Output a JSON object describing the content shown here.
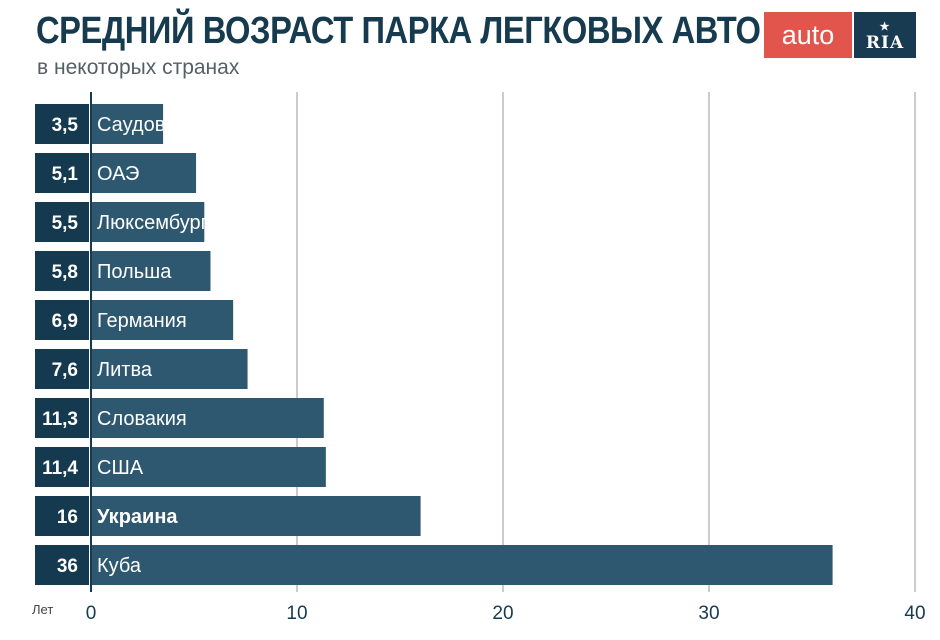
{
  "header": {
    "title": "СРЕДНИЙ ВОЗРАСТ ПАРКА ЛЕГКОВЫХ АВТО",
    "subtitle": "в некоторых странах"
  },
  "logo": {
    "auto_text": "auto",
    "ria_text": "RIA",
    "ria_icon": "star-icon"
  },
  "colors": {
    "bar": "#2d5870",
    "value_box": "#153a50",
    "grid": "#9a9a9a",
    "axis": "#163a4e",
    "text_on_bar": "#ffffff",
    "tick_text": "#163a4e",
    "title": "#163a4e",
    "logo_auto_bg": "#e2554d",
    "logo_ria_bg": "#193b52"
  },
  "chart_data": {
    "type": "bar",
    "orientation": "horizontal",
    "title": "СРЕДНИЙ ВОЗРАСТ ПАРКА ЛЕГКОВЫХ АВТО",
    "subtitle": "в некоторых странах",
    "xlabel": "Лет",
    "ylabel": "",
    "xlim": [
      0,
      40
    ],
    "xticks": [
      0,
      10,
      20,
      30,
      40
    ],
    "grid": true,
    "categories": [
      "Саудовская Аравия",
      "ОАЭ",
      "Люксембург",
      "Польша",
      "Германия",
      "Литва",
      "Словакия",
      "США",
      "Украина",
      "Куба"
    ],
    "values": [
      3.5,
      5.1,
      5.5,
      5.8,
      6.9,
      7.6,
      11.3,
      11.4,
      16,
      36
    ],
    "value_labels": [
      "3,5",
      "5,1",
      "5,5",
      "5,8",
      "6,9",
      "7,6",
      "11,3",
      "11,4",
      "16",
      "36"
    ],
    "highlight": "Украина"
  }
}
